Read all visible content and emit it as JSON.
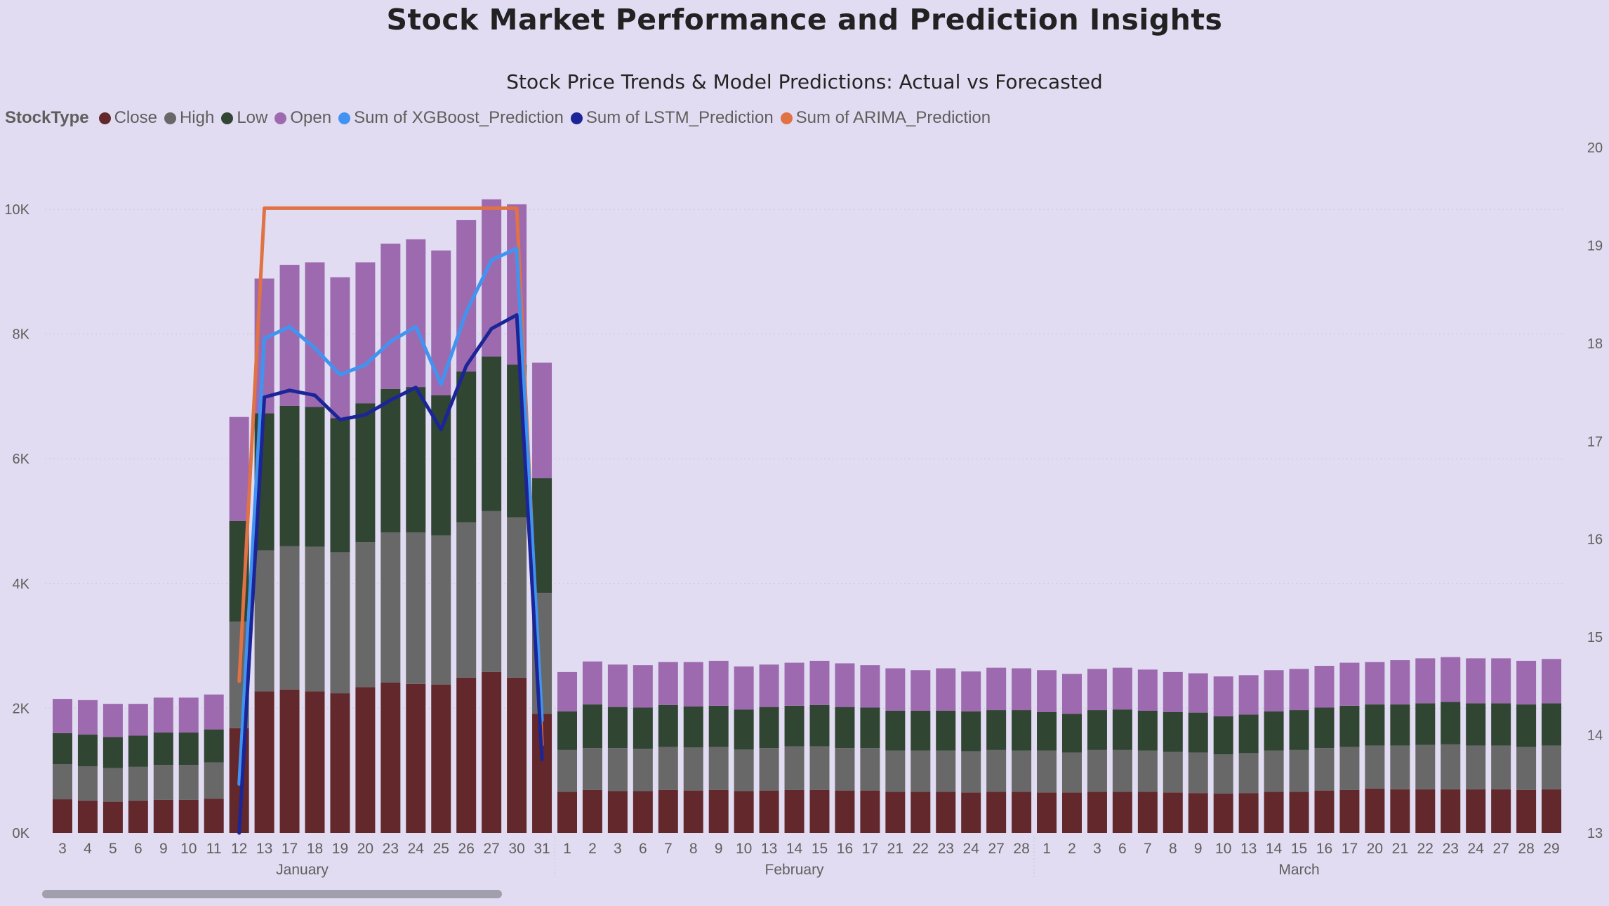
{
  "page_title": "Stock Market Performance and Prediction Insights",
  "chart_data": {
    "type": "bar",
    "title": "Stock Price Trends & Model Predictions: Actual vs Forecasted",
    "legend_title": "StockType",
    "legend_position": "top-left",
    "stacked": true,
    "grid": true,
    "y_left": {
      "ylim": [
        0,
        10500
      ],
      "ticks": [
        0,
        2000,
        4000,
        6000,
        8000,
        10000
      ],
      "tick_labels": [
        "0K",
        "2K",
        "4K",
        "6K",
        "8K",
        "10K"
      ]
    },
    "y_right": {
      "ylim": [
        13,
        20
      ],
      "ticks": [
        13,
        14,
        15,
        16,
        17,
        18,
        19,
        20
      ],
      "tick_labels": [
        "13",
        "14",
        "15",
        "16",
        "17",
        "18",
        "19",
        "20"
      ]
    },
    "x_tick_labels": [
      "3",
      "4",
      "5",
      "6",
      "9",
      "10",
      "11",
      "12",
      "13",
      "17",
      "18",
      "19",
      "20",
      "23",
      "24",
      "25",
      "26",
      "27",
      "30",
      "31",
      "1",
      "2",
      "3",
      "6",
      "7",
      "8",
      "9",
      "10",
      "13",
      "14",
      "15",
      "16",
      "17",
      "21",
      "22",
      "23",
      "24",
      "27",
      "28",
      "1",
      "2",
      "3",
      "6",
      "7",
      "8",
      "9",
      "10",
      "13",
      "14",
      "15",
      "16",
      "17",
      "20",
      "21",
      "22",
      "23",
      "24",
      "27",
      "28",
      "29"
    ],
    "month_groups": [
      {
        "label": "January",
        "start": 0,
        "end": 19
      },
      {
        "label": "February",
        "start": 20,
        "end": 38
      },
      {
        "label": "March",
        "start": 39,
        "end": 59
      }
    ],
    "series": [
      {
        "name": "Close",
        "color": "#62282b",
        "values": [
          540,
          520,
          500,
          520,
          530,
          530,
          550,
          1680,
          2270,
          2300,
          2270,
          2240,
          2340,
          2410,
          2390,
          2380,
          2490,
          2580,
          2490,
          1910,
          660,
          690,
          670,
          670,
          690,
          680,
          690,
          670,
          680,
          690,
          690,
          680,
          680,
          660,
          660,
          660,
          650,
          660,
          660,
          650,
          650,
          660,
          660,
          660,
          650,
          640,
          630,
          640,
          660,
          660,
          680,
          690,
          710,
          700,
          700,
          700,
          700,
          700,
          690,
          700
        ]
      },
      {
        "name": "High",
        "color": "#686868",
        "values": [
          560,
          550,
          540,
          540,
          560,
          560,
          580,
          1710,
          2260,
          2300,
          2320,
          2260,
          2320,
          2410,
          2430,
          2390,
          2490,
          2580,
          2570,
          1940,
          670,
          670,
          690,
          680,
          690,
          690,
          690,
          670,
          680,
          700,
          700,
          680,
          680,
          660,
          660,
          660,
          660,
          670,
          660,
          670,
          640,
          670,
          670,
          660,
          650,
          650,
          630,
          640,
          660,
          670,
          680,
          690,
          690,
          700,
          710,
          720,
          700,
          700,
          690,
          700
        ]
      },
      {
        "name": "Low",
        "color": "#314533",
        "values": [
          500,
          510,
          500,
          500,
          520,
          520,
          530,
          1610,
          2200,
          2250,
          2240,
          2150,
          2230,
          2300,
          2330,
          2250,
          2420,
          2480,
          2450,
          1840,
          620,
          700,
          660,
          660,
          670,
          660,
          660,
          640,
          660,
          650,
          660,
          660,
          650,
          640,
          640,
          640,
          640,
          640,
          650,
          620,
          620,
          640,
          650,
          640,
          640,
          640,
          610,
          620,
          630,
          640,
          650,
          660,
          660,
          660,
          670,
          680,
          680,
          680,
          680,
          680
        ]
      },
      {
        "name": "Open",
        "color": "#9e6aaf",
        "values": [
          550,
          550,
          530,
          510,
          560,
          560,
          560,
          1670,
          2160,
          2260,
          2320,
          2260,
          2260,
          2330,
          2370,
          2320,
          2430,
          2520,
          2570,
          1850,
          630,
          690,
          680,
          680,
          690,
          710,
          720,
          690,
          680,
          690,
          710,
          700,
          680,
          680,
          650,
          680,
          640,
          680,
          670,
          670,
          640,
          660,
          670,
          660,
          640,
          630,
          640,
          630,
          660,
          660,
          670,
          690,
          680,
          710,
          720,
          720,
          720,
          720,
          700,
          710
        ]
      },
      {
        "name": "Sum of XGBoost_Prediction",
        "color": "#4193f1",
        "type": "line",
        "axis": "right",
        "start_index": 7,
        "values": [
          13.5,
          18.05,
          18.17,
          17.95,
          17.68,
          17.78,
          18.02,
          18.17,
          17.58,
          18.32,
          18.85,
          18.97,
          14.15
        ]
      },
      {
        "name": "Sum of LSTM_Prediction",
        "color": "#1b2597",
        "type": "line",
        "axis": "right",
        "start_index": 7,
        "values": [
          13.0,
          17.45,
          17.52,
          17.47,
          17.22,
          17.27,
          17.42,
          17.55,
          17.12,
          17.77,
          18.15,
          18.29,
          13.75
        ]
      },
      {
        "name": "Sum of ARIMA_Prediction",
        "color": "#e07243",
        "type": "line",
        "axis": "right",
        "start_index": 7,
        "values": [
          14.55,
          19.38,
          19.38,
          19.38,
          19.38,
          19.38,
          19.38,
          19.38,
          19.38,
          19.38,
          19.38,
          19.38,
          13.9
        ]
      }
    ]
  }
}
